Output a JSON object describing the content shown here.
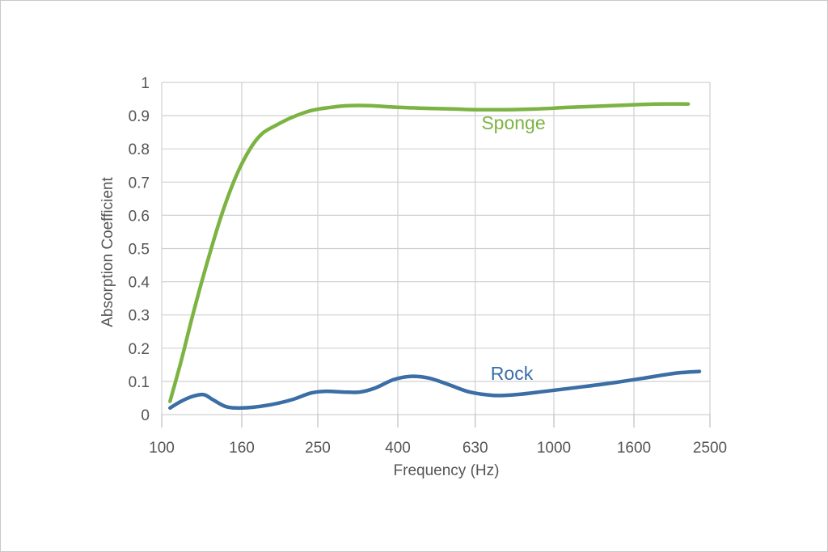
{
  "chart_data": {
    "type": "line",
    "xlabel": "Frequency (Hz)",
    "ylabel": "Absorption Coefficient",
    "x_scale": "log",
    "x_ticks": [
      "100",
      "160",
      "250",
      "400",
      "630",
      "1000",
      "1600",
      "2500"
    ],
    "y_ticks": [
      "0",
      "0.1",
      "0.2",
      "0.3",
      "0.4",
      "0.5",
      "0.6",
      "0.7",
      "0.8",
      "0.9",
      "1"
    ],
    "xlim": [
      100,
      2500
    ],
    "ylim": [
      0,
      1
    ],
    "grid": true,
    "series": [
      {
        "name": "Sponge",
        "color": "#7cb342",
        "x": [
          105,
          112,
          120,
          130,
          142,
          155,
          168,
          180,
          195,
          215,
          240,
          270,
          300,
          340,
          400,
          480,
          560,
          640,
          760,
          900,
          1100,
          1400,
          1800,
          2200
        ],
        "y": [
          0.04,
          0.16,
          0.3,
          0.45,
          0.6,
          0.72,
          0.8,
          0.845,
          0.87,
          0.895,
          0.915,
          0.925,
          0.93,
          0.93,
          0.925,
          0.922,
          0.92,
          0.918,
          0.918,
          0.92,
          0.925,
          0.93,
          0.935,
          0.935
        ]
      },
      {
        "name": "Rock",
        "color": "#3a6ea5",
        "x": [
          105,
          112,
          120,
          128,
          135,
          145,
          155,
          170,
          190,
          215,
          240,
          260,
          290,
          320,
          350,
          390,
          430,
          480,
          540,
          610,
          700,
          800,
          950,
          1150,
          1400,
          1700,
          2050,
          2350
        ],
        "y": [
          0.02,
          0.04,
          0.055,
          0.06,
          0.045,
          0.025,
          0.02,
          0.022,
          0.03,
          0.045,
          0.065,
          0.07,
          0.068,
          0.068,
          0.08,
          0.105,
          0.115,
          0.11,
          0.09,
          0.068,
          0.058,
          0.06,
          0.07,
          0.082,
          0.095,
          0.11,
          0.125,
          0.13
        ]
      }
    ]
  }
}
